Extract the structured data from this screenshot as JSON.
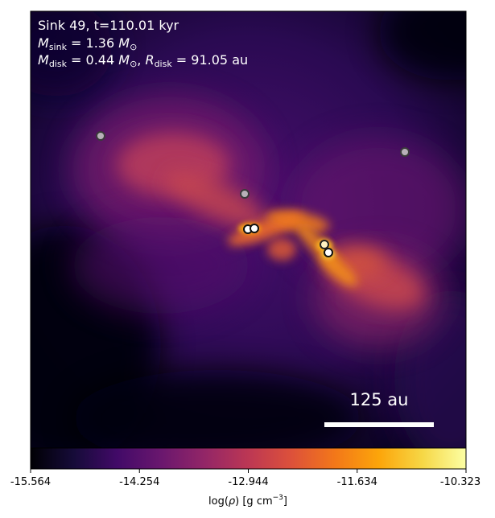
{
  "header": {
    "line1": "Sink 49, t=110.01 kyr",
    "line2": {
      "sym": "M",
      "sub": "sink",
      "rest": " = 1.36 ",
      "unit": "M",
      "unit_sub": "⊙"
    },
    "line3": {
      "m_sym": "M",
      "m_sub": "disk",
      "m_rest": " = 0.44 ",
      "m_unit": "M",
      "m_unit_sub": "⊙",
      "sep": ", ",
      "r_sym": "R",
      "r_sub": "disk",
      "r_rest": " = 91.05 au"
    }
  },
  "scale_bar": {
    "label": "125 au"
  },
  "colorbar": {
    "ticks": [
      "-15.564",
      "-14.254",
      "-12.944",
      "-11.634",
      "-10.323"
    ],
    "label_prefix": "log(",
    "label_rho": "ρ",
    "label_mid": ") [g cm",
    "label_exp": "−3",
    "label_suffix": "]",
    "colormap": "inferno"
  },
  "sinks": [
    {
      "id": "sink-a",
      "shade": "#b8b0b8"
    },
    {
      "id": "sink-b",
      "shade": "#b8b0b8"
    },
    {
      "id": "sink-c",
      "shade": "#b8b0b8"
    },
    {
      "id": "sink-d",
      "shade": "#ffffff"
    },
    {
      "id": "sink-e",
      "shade": "#ffffff"
    },
    {
      "id": "sink-f",
      "shade": "#fff2c0"
    },
    {
      "id": "sink-g",
      "shade": "#ffffff"
    }
  ]
}
